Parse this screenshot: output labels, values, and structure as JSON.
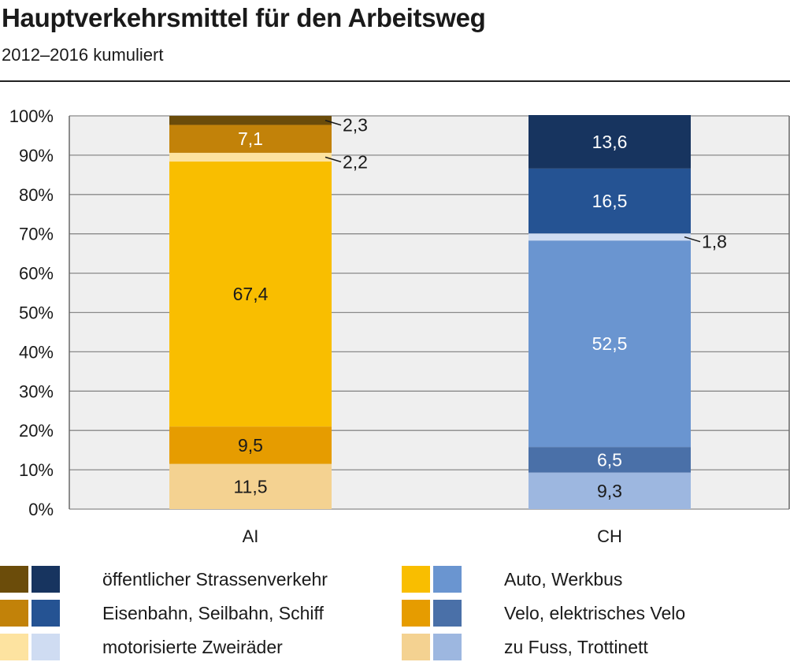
{
  "header": {
    "title": "Hauptverkehrsmittel für den Arbeitsweg",
    "subtitle": "2012–2016 kumuliert"
  },
  "chart_data": {
    "type": "bar",
    "stacked": true,
    "categories": [
      "AI",
      "CH"
    ],
    "ylim": [
      0,
      100
    ],
    "yticks": [
      "0%",
      "10%",
      "20%",
      "30%",
      "40%",
      "50%",
      "60%",
      "70%",
      "80%",
      "90%",
      "100%"
    ],
    "grid": true,
    "legend_position": "bottom",
    "series": [
      {
        "name": "zu Fuss, Trottinett",
        "values": [
          11.5,
          9.3
        ],
        "labels": [
          "11,5",
          "9,3"
        ],
        "colors": [
          "#f4d291",
          "#9db7e0"
        ],
        "label_colors": [
          "#1a1a1a",
          "#1a1a1a"
        ]
      },
      {
        "name": "Velo, elektrisches Velo",
        "values": [
          9.5,
          6.5
        ],
        "labels": [
          "9,5",
          "6,5"
        ],
        "colors": [
          "#e69c00",
          "#4a70a8"
        ],
        "label_colors": [
          "#1a1a1a",
          "#ffffff"
        ]
      },
      {
        "name": "Auto, Werkbus",
        "values": [
          67.4,
          52.5
        ],
        "labels": [
          "67,4",
          "52,5"
        ],
        "colors": [
          "#f9be00",
          "#6a95d0"
        ],
        "label_colors": [
          "#1a1a1a",
          "#ffffff"
        ]
      },
      {
        "name": "motorisierte Zweiräder",
        "values": [
          2.2,
          1.8
        ],
        "labels": [
          "2,2",
          "1,8"
        ],
        "colors": [
          "#fde3a0",
          "#cfdcf2"
        ],
        "label_colors": [
          "#1a1a1a",
          "#1a1a1a"
        ],
        "external_label": [
          true,
          true
        ]
      },
      {
        "name": "Eisenbahn, Seilbahn, Schiff",
        "values": [
          7.1,
          16.5
        ],
        "labels": [
          "7,1",
          "16,5"
        ],
        "colors": [
          "#c28209",
          "#255393"
        ],
        "label_colors": [
          "#ffffff",
          "#ffffff"
        ]
      },
      {
        "name": "öffentlicher Strassenverkehr",
        "values": [
          2.3,
          13.6
        ],
        "labels": [
          "2,3",
          "13,6"
        ],
        "colors": [
          "#6b4c0a",
          "#17345f"
        ],
        "label_colors": [
          "#ffffff",
          "#ffffff"
        ],
        "external_label": [
          true,
          false
        ]
      }
    ]
  },
  "legend": {
    "items": [
      {
        "label": "öffentlicher Strassenverkehr",
        "colors": [
          "#6b4c0a",
          "#17345f"
        ]
      },
      {
        "label": "Eisenbahn, Seilbahn, Schiff",
        "colors": [
          "#c28209",
          "#255393"
        ]
      },
      {
        "label": "motorisierte Zweiräder",
        "colors": [
          "#fde3a0",
          "#cfdcf2"
        ]
      },
      {
        "label": "Auto, Werkbus",
        "colors": [
          "#f9be00",
          "#6a95d0"
        ]
      },
      {
        "label": "Velo, elektrisches Velo",
        "colors": [
          "#e69c00",
          "#4a70a8"
        ]
      },
      {
        "label": "zu Fuss, Trottinett",
        "colors": [
          "#f4d291",
          "#9db7e0"
        ]
      }
    ]
  }
}
